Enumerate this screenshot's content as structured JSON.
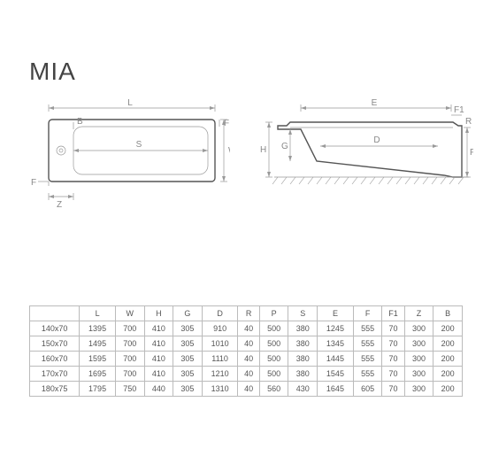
{
  "title": "MIA",
  "diagrams": {
    "top": {
      "labels": {
        "L": "L",
        "B": "B",
        "S": "S",
        "W": "W",
        "F": "F",
        "Z": "Z"
      }
    },
    "side": {
      "labels": {
        "E": "E",
        "F1": "F1",
        "R": "R",
        "H": "H",
        "G": "G",
        "D": "D",
        "P": "P"
      }
    }
  },
  "table": {
    "columns": [
      "",
      "L",
      "W",
      "H",
      "G",
      "D",
      "R",
      "P",
      "S",
      "E",
      "F",
      "F1",
      "Z",
      "B"
    ],
    "rows": [
      [
        "140x70",
        "1395",
        "700",
        "410",
        "305",
        "910",
        "40",
        "500",
        "380",
        "1245",
        "555",
        "70",
        "300",
        "200"
      ],
      [
        "150x70",
        "1495",
        "700",
        "410",
        "305",
        "1010",
        "40",
        "500",
        "380",
        "1345",
        "555",
        "70",
        "300",
        "200"
      ],
      [
        "160x70",
        "1595",
        "700",
        "410",
        "305",
        "1110",
        "40",
        "500",
        "380",
        "1445",
        "555",
        "70",
        "300",
        "200"
      ],
      [
        "170x70",
        "1695",
        "700",
        "410",
        "305",
        "1210",
        "40",
        "500",
        "380",
        "1545",
        "555",
        "70",
        "300",
        "200"
      ],
      [
        "180x75",
        "1795",
        "750",
        "440",
        "305",
        "1310",
        "40",
        "560",
        "430",
        "1645",
        "605",
        "70",
        "300",
        "200"
      ]
    ],
    "header_bg": "#ffffff",
    "border_color": "#bbbbbb",
    "font_size": 9,
    "text_color": "#555555"
  },
  "colors": {
    "background": "#ffffff",
    "title_color": "#444444",
    "line_thin": "#999999",
    "line_thick": "#555555",
    "label_color": "#888888"
  }
}
